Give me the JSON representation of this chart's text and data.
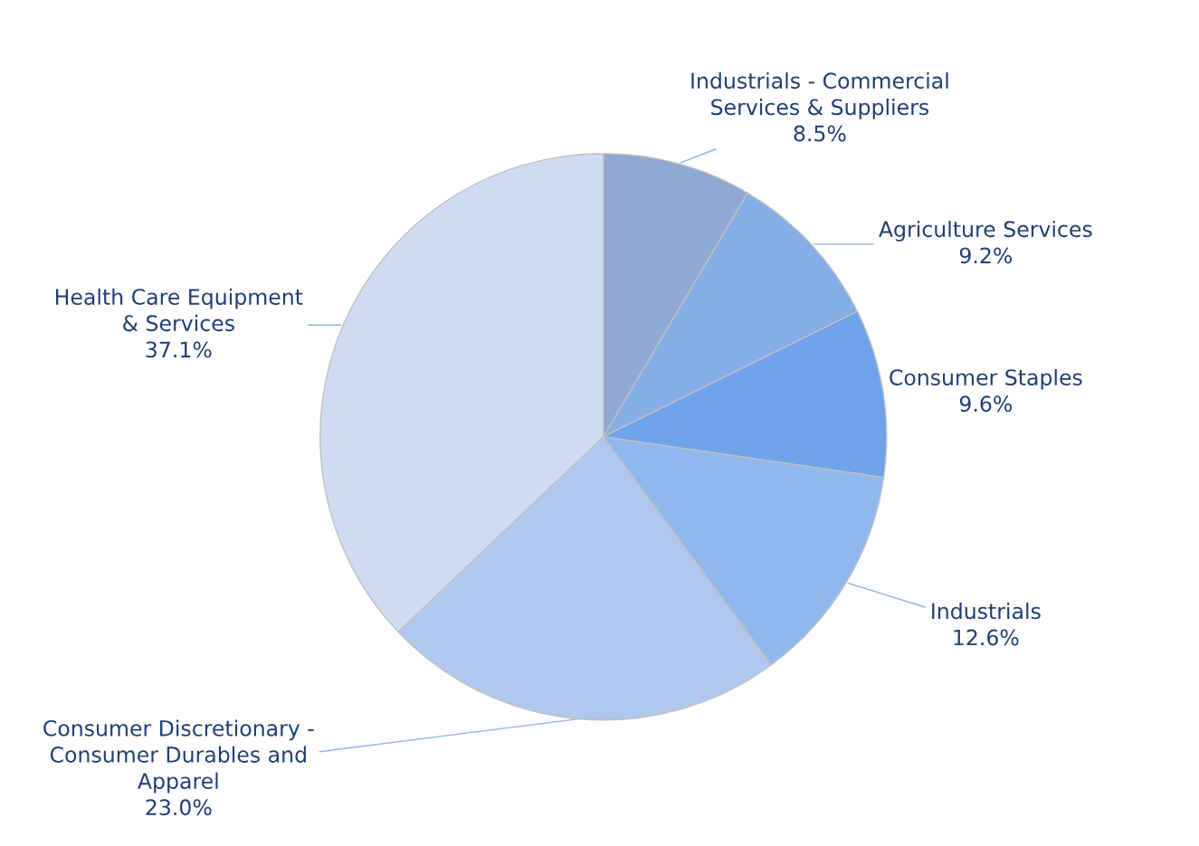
{
  "chart_data": {
    "type": "pie",
    "categories": [
      "Industrials - Commercial\nServices & Suppliers",
      "Agriculture Services",
      "Consumer Staples",
      "Industrials",
      "Consumer Discretionary -\nConsumer Durables and\nApparel",
      "Health Care Equipment\n& Services"
    ],
    "values": [
      8.5,
      9.2,
      9.6,
      12.6,
      23.0,
      37.1
    ],
    "value_labels": [
      "8.5%",
      "9.2%",
      "9.6%",
      "12.6%",
      "23.0%",
      "37.1%"
    ],
    "colors": [
      "#8fa8d4",
      "#86aee6",
      "#6ea3ea",
      "#90b8ef",
      "#b0c8ee",
      "#cddcf2"
    ],
    "legend": false
  }
}
